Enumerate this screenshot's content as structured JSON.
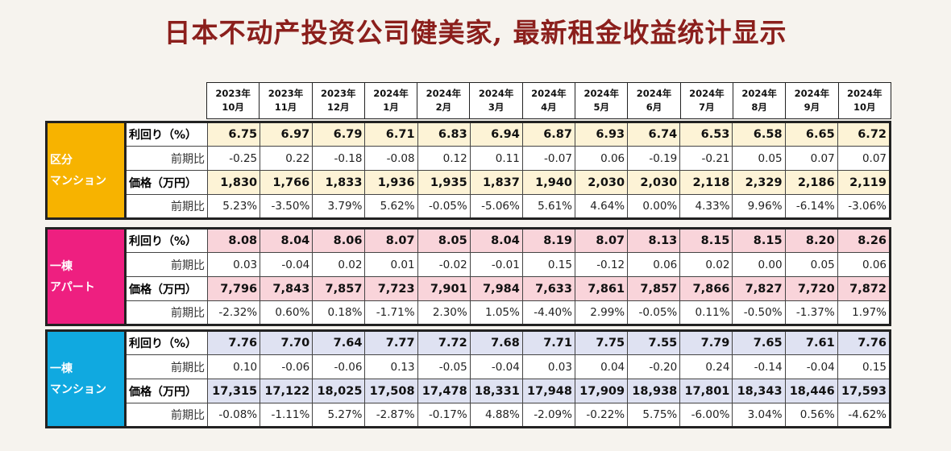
{
  "title": "日本不动产投资公司健美家, 最新租金收益统计显示",
  "colors": {
    "title": "#8b1f1c",
    "group1": "#f7b300",
    "group2": "#ee1f80",
    "group3": "#10a9e0"
  },
  "months": [
    {
      "year": "2023年",
      "month": "10月"
    },
    {
      "year": "2023年",
      "month": "11月"
    },
    {
      "year": "2023年",
      "month": "12月"
    },
    {
      "year": "2024年",
      "month": "1月"
    },
    {
      "year": "2024年",
      "month": "2月"
    },
    {
      "year": "2024年",
      "month": "3月"
    },
    {
      "year": "2024年",
      "month": "4月"
    },
    {
      "year": "2024年",
      "month": "5月"
    },
    {
      "year": "2024年",
      "month": "6月"
    },
    {
      "year": "2024年",
      "month": "7月"
    },
    {
      "year": "2024年",
      "month": "8月"
    },
    {
      "year": "2024年",
      "month": "9月"
    },
    {
      "year": "2024年",
      "month": "10月"
    }
  ],
  "groups": [
    {
      "label_line1": "区分",
      "label_line2": "マンション",
      "rows": [
        {
          "label": "利回り（%）",
          "kind": "main",
          "values": [
            "6.75",
            "6.97",
            "6.79",
            "6.71",
            "6.83",
            "6.94",
            "6.87",
            "6.93",
            "6.74",
            "6.53",
            "6.58",
            "6.65",
            "6.72"
          ]
        },
        {
          "label": "前期比",
          "kind": "sub",
          "values": [
            "-0.25",
            "0.22",
            "-0.18",
            "-0.08",
            "0.12",
            "0.11",
            "-0.07",
            "0.06",
            "-0.19",
            "-0.21",
            "0.05",
            "0.07",
            "0.07"
          ]
        },
        {
          "label": "価格（万円）",
          "kind": "main",
          "values": [
            "1,830",
            "1,766",
            "1,833",
            "1,936",
            "1,935",
            "1,837",
            "1,940",
            "2,030",
            "2,030",
            "2,118",
            "2,329",
            "2,186",
            "2,119"
          ]
        },
        {
          "label": "前期比",
          "kind": "sub",
          "values": [
            "5.23%",
            "-3.50%",
            "3.79%",
            "5.62%",
            "-0.05%",
            "-5.06%",
            "5.61%",
            "4.64%",
            "0.00%",
            "4.33%",
            "9.96%",
            "-6.14%",
            "-3.06%"
          ]
        }
      ]
    },
    {
      "label_line1": "一棟",
      "label_line2": "アパート",
      "rows": [
        {
          "label": "利回り（%）",
          "kind": "main",
          "values": [
            "8.08",
            "8.04",
            "8.06",
            "8.07",
            "8.05",
            "8.04",
            "8.19",
            "8.07",
            "8.13",
            "8.15",
            "8.15",
            "8.20",
            "8.26"
          ]
        },
        {
          "label": "前期比",
          "kind": "sub",
          "values": [
            "0.03",
            "-0.04",
            "0.02",
            "0.01",
            "-0.02",
            "-0.01",
            "0.15",
            "-0.12",
            "0.06",
            "0.02",
            "0.00",
            "0.05",
            "0.06"
          ]
        },
        {
          "label": "価格（万円）",
          "kind": "main",
          "values": [
            "7,796",
            "7,843",
            "7,857",
            "7,723",
            "7,901",
            "7,984",
            "7,633",
            "7,861",
            "7,857",
            "7,866",
            "7,827",
            "7,720",
            "7,872"
          ]
        },
        {
          "label": "前期比",
          "kind": "sub",
          "values": [
            "-2.32%",
            "0.60%",
            "0.18%",
            "-1.71%",
            "2.30%",
            "1.05%",
            "-4.40%",
            "2.99%",
            "-0.05%",
            "0.11%",
            "-0.50%",
            "-1.37%",
            "1.97%"
          ]
        }
      ]
    },
    {
      "label_line1": "一棟",
      "label_line2": "マンション",
      "rows": [
        {
          "label": "利回り（%）",
          "kind": "main",
          "values": [
            "7.76",
            "7.70",
            "7.64",
            "7.77",
            "7.72",
            "7.68",
            "7.71",
            "7.75",
            "7.55",
            "7.79",
            "7.65",
            "7.61",
            "7.76"
          ]
        },
        {
          "label": "前期比",
          "kind": "sub",
          "values": [
            "0.10",
            "-0.06",
            "-0.06",
            "0.13",
            "-0.05",
            "-0.04",
            "0.03",
            "0.04",
            "-0.20",
            "0.24",
            "-0.14",
            "-0.04",
            "0.15"
          ]
        },
        {
          "label": "価格（万円）",
          "kind": "main",
          "values": [
            "17,315",
            "17,122",
            "18,025",
            "17,508",
            "17,478",
            "18,331",
            "17,948",
            "17,909",
            "18,938",
            "17,801",
            "18,343",
            "18,446",
            "17,593"
          ]
        },
        {
          "label": "前期比",
          "kind": "sub",
          "values": [
            "-0.08%",
            "-1.11%",
            "5.27%",
            "-2.87%",
            "-0.17%",
            "4.88%",
            "-2.09%",
            "-0.22%",
            "5.75%",
            "-6.00%",
            "3.04%",
            "0.56%",
            "-4.62%"
          ]
        }
      ]
    }
  ]
}
